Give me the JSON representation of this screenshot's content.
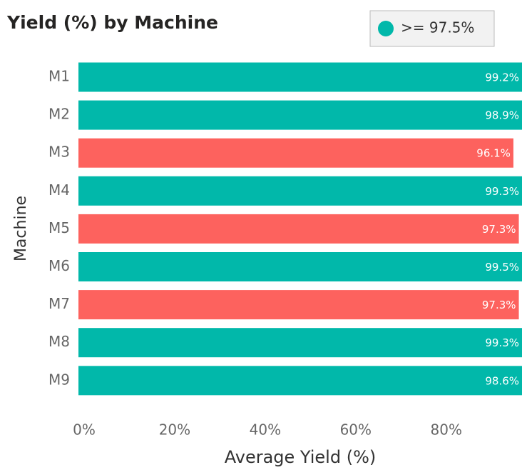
{
  "chart_data": {
    "type": "barh",
    "title": "Yield (%) by Machine",
    "categories": [
      "M1",
      "M2",
      "M3",
      "M4",
      "M5",
      "M6",
      "M7",
      "M8",
      "M9"
    ],
    "values": [
      99.2,
      98.9,
      96.1,
      99.3,
      97.3,
      99.5,
      97.3,
      99.3,
      98.6
    ],
    "value_labels": [
      "99.2%",
      "98.9%",
      "96.1%",
      "99.3%",
      "97.3%",
      "99.5%",
      "97.3%",
      "99.3%",
      "98.6%"
    ],
    "colors": [
      "#01b8aa",
      "#01b8aa",
      "#fd625e",
      "#01b8aa",
      "#fd625e",
      "#01b8aa",
      "#fd625e",
      "#01b8aa",
      "#01b8aa"
    ],
    "legend": {
      "label": ">= 97.5%",
      "color": "#01b8aa"
    },
    "xlabel": "Average Yield (%)",
    "ylabel": "Machine",
    "xlim": [
      0,
      98
    ],
    "xticks": [
      {
        "value": 0,
        "label": "0%"
      },
      {
        "value": 20,
        "label": "20%"
      },
      {
        "value": 40,
        "label": "40%"
      },
      {
        "value": 60,
        "label": "60%"
      },
      {
        "value": 80,
        "label": "80%"
      }
    ]
  }
}
